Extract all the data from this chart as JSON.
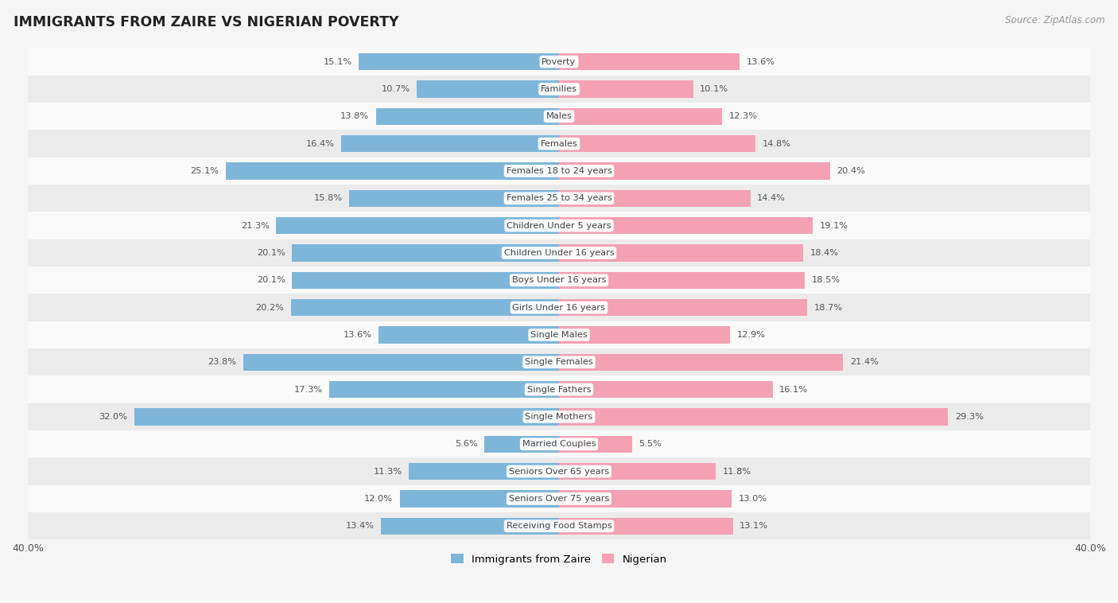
{
  "title": "IMMIGRANTS FROM ZAIRE VS NIGERIAN POVERTY",
  "source": "Source: ZipAtlas.com",
  "categories": [
    "Poverty",
    "Families",
    "Males",
    "Females",
    "Females 18 to 24 years",
    "Females 25 to 34 years",
    "Children Under 5 years",
    "Children Under 16 years",
    "Boys Under 16 years",
    "Girls Under 16 years",
    "Single Males",
    "Single Females",
    "Single Fathers",
    "Single Mothers",
    "Married Couples",
    "Seniors Over 65 years",
    "Seniors Over 75 years",
    "Receiving Food Stamps"
  ],
  "zaire_values": [
    15.1,
    10.7,
    13.8,
    16.4,
    25.1,
    15.8,
    21.3,
    20.1,
    20.1,
    20.2,
    13.6,
    23.8,
    17.3,
    32.0,
    5.6,
    11.3,
    12.0,
    13.4
  ],
  "nigerian_values": [
    13.6,
    10.1,
    12.3,
    14.8,
    20.4,
    14.4,
    19.1,
    18.4,
    18.5,
    18.7,
    12.9,
    21.4,
    16.1,
    29.3,
    5.5,
    11.8,
    13.0,
    13.1
  ],
  "zaire_color": "#7EB6D9",
  "nigerian_color": "#F4A0B5",
  "background_color": "#f5f5f5",
  "row_color_light": "#f9f9f9",
  "row_color_dark": "#ebebeb",
  "xlim": 40.0,
  "bar_height": 0.62,
  "legend_labels": [
    "Immigrants from Zaire",
    "Nigerian"
  ],
  "axis_label_left": "40.0%",
  "axis_label_right": "40.0%"
}
